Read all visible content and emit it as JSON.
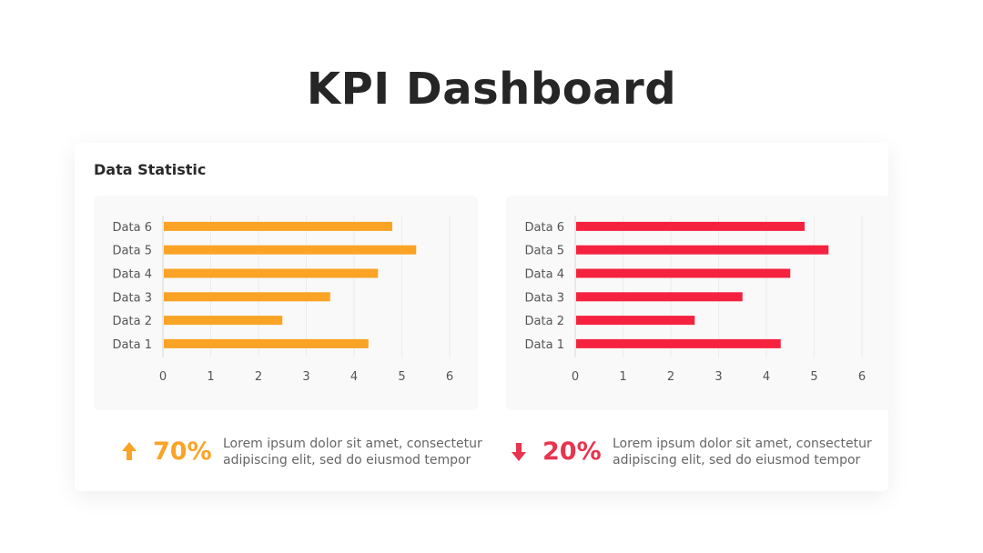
{
  "title": "KPI Dashboard",
  "card": {
    "title": "Data Statistic"
  },
  "chart_data": [
    {
      "type": "bar",
      "orientation": "horizontal",
      "categories": [
        "Data 1",
        "Data 2",
        "Data 3",
        "Data 4",
        "Data 5",
        "Data 6"
      ],
      "values": [
        4.3,
        2.5,
        3.5,
        4.5,
        5.3,
        4.8
      ],
      "xlim": [
        0,
        6
      ],
      "xticks": [
        "0",
        "1",
        "2",
        "3",
        "4",
        "5",
        "6"
      ],
      "grid": true,
      "color": "#FBA325"
    },
    {
      "type": "bar",
      "orientation": "horizontal",
      "categories": [
        "Data 1",
        "Data 2",
        "Data 3",
        "Data 4",
        "Data 5",
        "Data 6"
      ],
      "values": [
        4.3,
        2.5,
        3.5,
        4.5,
        5.3,
        4.8
      ],
      "xlim": [
        0,
        6
      ],
      "xticks": [
        "0",
        "1",
        "2",
        "3",
        "4",
        "5",
        "6"
      ],
      "grid": true,
      "color": "#F5223F"
    }
  ],
  "stats": [
    {
      "icon": "arrow-up-icon",
      "value": "70%",
      "color": "#FBA325",
      "line1": "Lorem ipsum dolor sit amet, consectetur",
      "line2": "adipiscing elit, sed do eiusmod tempor"
    },
    {
      "icon": "arrow-down-icon",
      "value": "20%",
      "color": "#E8344E",
      "line1": "Lorem ipsum dolor sit amet, consectetur",
      "line2": "adipiscing elit, sed do eiusmod tempor"
    }
  ]
}
